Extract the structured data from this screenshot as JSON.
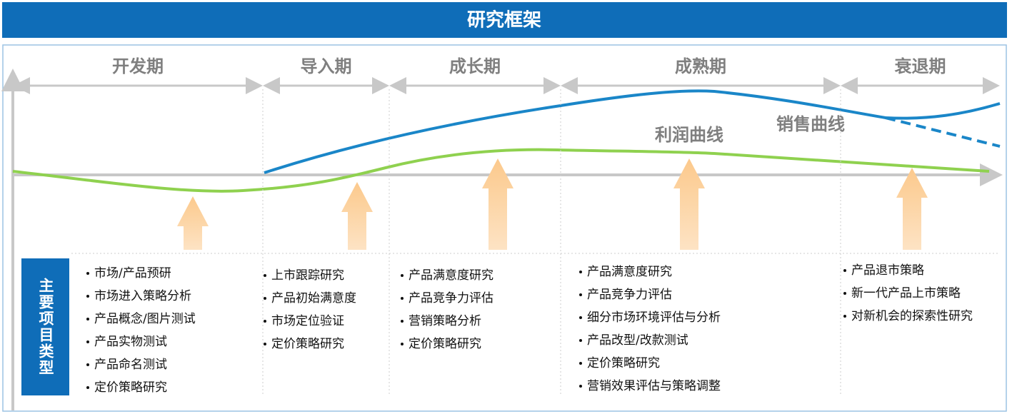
{
  "header": {
    "title": "研究框架"
  },
  "curves": {
    "profit": "利润曲线",
    "sales": "销售曲线"
  },
  "side_label": "主要项目类型",
  "stages": [
    {
      "label": "开发期",
      "items": [
        "市场/产品预研",
        "市场进入策略分析",
        "产品概念/图片测试",
        "产品实物测试",
        "产品命名测试",
        "定价策略研究"
      ]
    },
    {
      "label": "导入期",
      "items": [
        "上市跟踪研究",
        "产品初始满意度",
        "市场定位验证",
        "定价策略研究"
      ]
    },
    {
      "label": "成长期",
      "items": [
        "产品满意度研究",
        "产品竞争力评估",
        "营销策略分析",
        "定价策略研究"
      ]
    },
    {
      "label": "成熟期",
      "items": [
        "产品满意度研究",
        "产品竞争力评估",
        "细分市场环境评估与分析",
        "产品改型/改款测试",
        "定价策略研究",
        "营销效果评估与策略调整"
      ]
    },
    {
      "label": "衰退期",
      "items": [
        "产品退市策略",
        "新一代产品上市策略",
        "对新机会的探索性研究"
      ]
    }
  ]
}
